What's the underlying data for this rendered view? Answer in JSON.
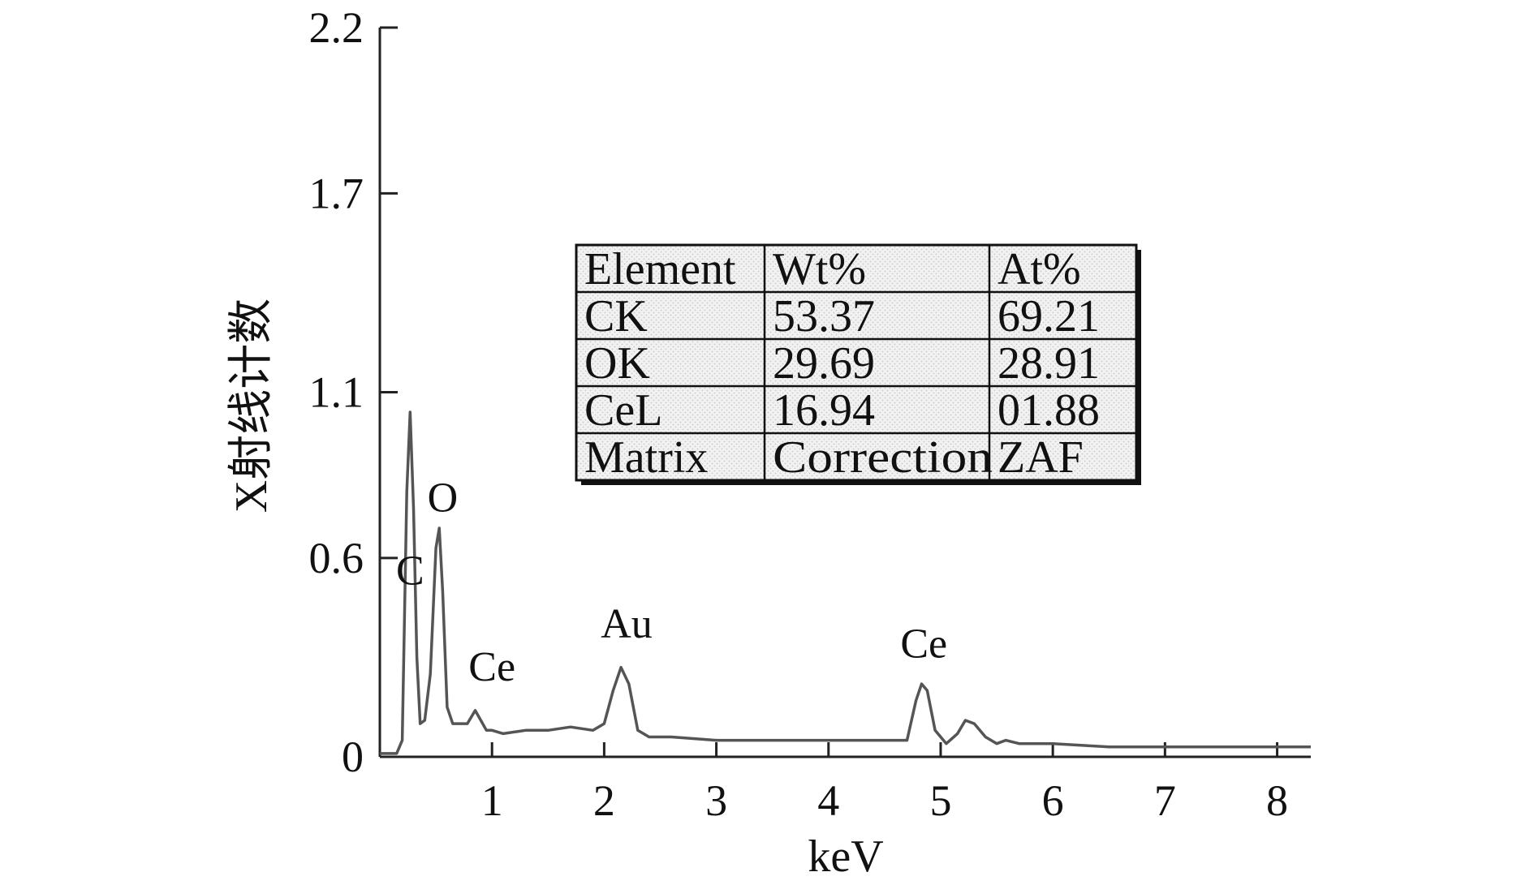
{
  "chart_data": {
    "type": "line",
    "xlabel": "keV",
    "ylabel": "X射线计数",
    "xlim": [
      0,
      8.3
    ],
    "ylim": [
      0,
      2.2
    ],
    "x_ticks": [
      "1",
      "2",
      "3",
      "4",
      "5",
      "6",
      "7",
      "8"
    ],
    "y_ticks": [
      "0",
      "0.6",
      "1.1",
      "1.7",
      "2.2"
    ],
    "line_color": "#555555",
    "series": [
      {
        "x": [
          0.0,
          0.15,
          0.2,
          0.24,
          0.27,
          0.3,
          0.33,
          0.36,
          0.4,
          0.45,
          0.5,
          0.53,
          0.56,
          0.6,
          0.65,
          0.7,
          0.78,
          0.85,
          0.9,
          0.95,
          1.0,
          1.1,
          1.3,
          1.5,
          1.7,
          1.9,
          2.0,
          2.08,
          2.15,
          2.22,
          2.3,
          2.4,
          2.6,
          3.0,
          3.5,
          4.0,
          4.5,
          4.7,
          4.78,
          4.83,
          4.88,
          4.95,
          5.05,
          5.15,
          5.22,
          5.3,
          5.4,
          5.5,
          5.58,
          5.7,
          6.0,
          6.5,
          7.0,
          7.5,
          8.0,
          8.3
        ],
        "y": [
          0.01,
          0.01,
          0.05,
          0.8,
          1.04,
          0.75,
          0.3,
          0.1,
          0.11,
          0.25,
          0.63,
          0.69,
          0.5,
          0.15,
          0.1,
          0.1,
          0.1,
          0.14,
          0.11,
          0.08,
          0.08,
          0.07,
          0.08,
          0.08,
          0.09,
          0.08,
          0.1,
          0.2,
          0.27,
          0.22,
          0.08,
          0.06,
          0.06,
          0.05,
          0.05,
          0.05,
          0.05,
          0.05,
          0.17,
          0.22,
          0.2,
          0.08,
          0.04,
          0.07,
          0.11,
          0.1,
          0.06,
          0.04,
          0.05,
          0.04,
          0.04,
          0.03,
          0.03,
          0.03,
          0.03,
          0.03
        ]
      }
    ],
    "annotations": [
      {
        "text": "C",
        "x": 0.27,
        "y": 0.52
      },
      {
        "text": "O",
        "x": 0.56,
        "y": 0.74
      },
      {
        "text": "Ce",
        "x": 1.0,
        "y": 0.23
      },
      {
        "text": "Au",
        "x": 2.2,
        "y": 0.36
      },
      {
        "text": "Ce",
        "x": 4.85,
        "y": 0.3
      }
    ],
    "table": {
      "header": [
        "Element",
        "Wt%",
        "At%"
      ],
      "rows": [
        [
          "CK",
          "53.37",
          "69.21"
        ],
        [
          "OK",
          "29.69",
          "28.91"
        ],
        [
          "CeL",
          "16.94",
          "01.88"
        ],
        [
          "Matrix",
          "Correction",
          "ZAF"
        ]
      ]
    }
  }
}
